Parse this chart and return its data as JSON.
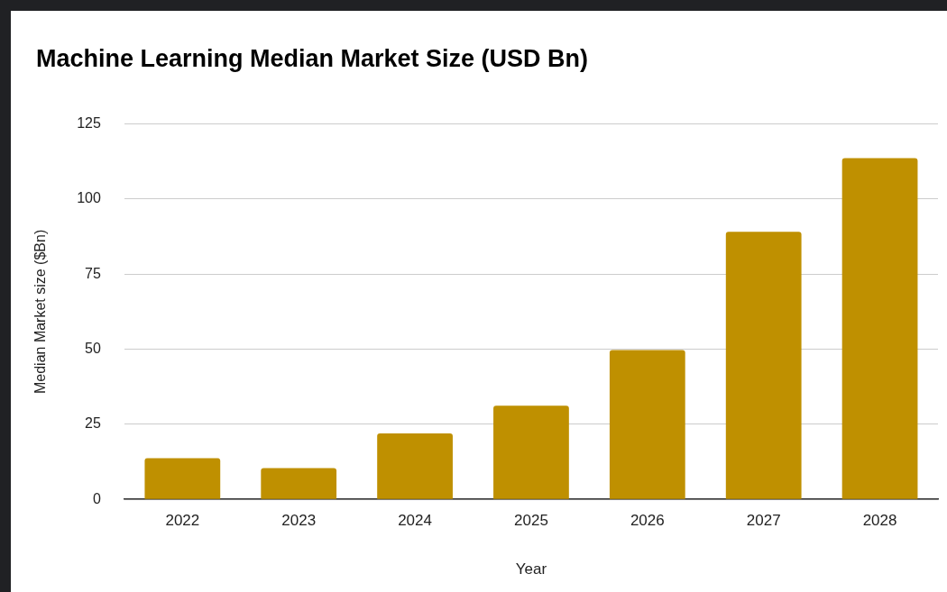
{
  "chart_data": {
    "type": "bar",
    "title": "Machine Learning Median Market Size (USD Bn)",
    "xlabel": "Year",
    "ylabel": "Median Market size ($Bn)",
    "categories": [
      "2022",
      "2023",
      "2024",
      "2025",
      "2026",
      "2027",
      "2028"
    ],
    "values": [
      13.7,
      10.4,
      22,
      31.2,
      49.7,
      89.1,
      113.6
    ],
    "color": "#bf9000",
    "ylim": [
      0,
      125
    ],
    "yticks": [
      0,
      25,
      50,
      75,
      100,
      125
    ],
    "grid": "y",
    "legend": false
  }
}
